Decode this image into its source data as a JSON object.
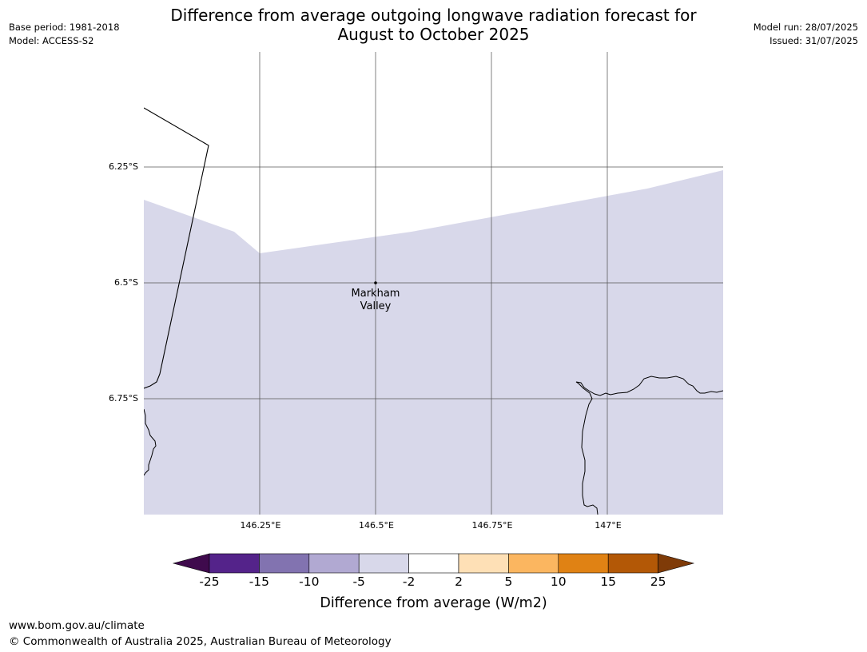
{
  "header": {
    "title_line1": "Difference from average outgoing longwave radiation forecast for",
    "title_line2": "August to October 2025",
    "base_period": "Base period: 1981-2018",
    "model": "Model: ACCESS-S2",
    "model_run": "Model run: 28/07/2025",
    "issued": "Issued: 31/07/2025"
  },
  "map": {
    "lat_labels": [
      "6.25°S",
      "6.5°S",
      "6.75°S"
    ],
    "lon_labels": [
      "146.25°E",
      "146.5°E",
      "146.75°E",
      "147°E"
    ],
    "place": {
      "line1": "Markham",
      "line2": "Valley"
    },
    "fill_color": "#d8d8ea"
  },
  "colorbar": {
    "ticks": [
      "-25",
      "-15",
      "-10",
      "-5",
      "-2",
      "2",
      "5",
      "10",
      "15",
      "25"
    ],
    "colors": [
      "#3f0a4d",
      "#54238a",
      "#8273b0",
      "#b1a9d2",
      "#d8d8ea",
      "#ffffff",
      "#fee0b6",
      "#fbb660",
      "#e08214",
      "#b35806",
      "#7f3b08"
    ],
    "label": "Difference from average (W/m2)"
  },
  "footer": {
    "url": "www.bom.gov.au/climate",
    "copyright": "© Commonwealth of Australia 2025, Australian Bureau of Meteorology"
  }
}
